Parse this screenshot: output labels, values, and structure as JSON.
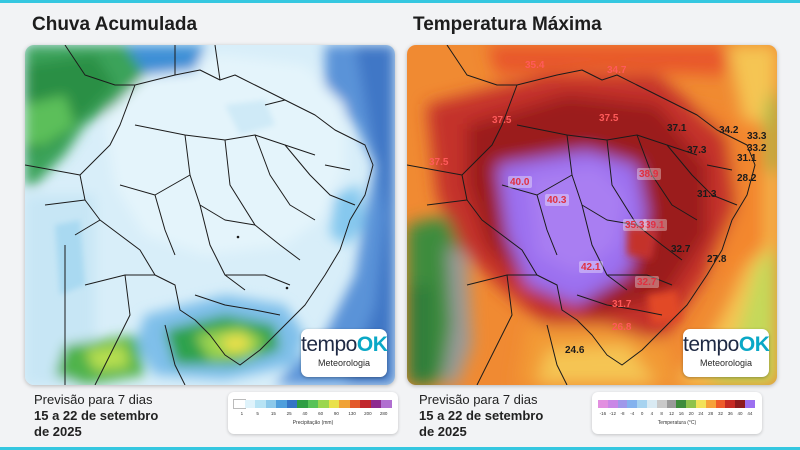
{
  "colors": {
    "frame_accent": "#35c7e0",
    "brand_accent": "#0aa8c6"
  },
  "brand": {
    "name_part1": "tempo",
    "name_part2": "OK",
    "subtitle": "Meteorologia"
  },
  "rain_panel": {
    "title": "Chuva Acumulada",
    "forecast_period": "Previsão para 7 dias",
    "date_range": "15 a 22 de setembro",
    "year": "de 2025",
    "legend": {
      "caption": "Precipitação (mm)",
      "ticks": [
        "1",
        "5",
        "15",
        "25",
        "40",
        "60",
        "90",
        "130",
        "200",
        "280"
      ],
      "colors": [
        "#ffffff",
        "#dff3fb",
        "#b7e3f4",
        "#8cc9ea",
        "#4f9fdc",
        "#3575c6",
        "#2f9e44",
        "#58c257",
        "#9bd64f",
        "#e9e14a",
        "#f0a236",
        "#e35a2a",
        "#c1272d",
        "#8e2a8f",
        "#b06fd0"
      ]
    }
  },
  "temp_panel": {
    "title": "Temperatura Máxima",
    "forecast_period": "Previsão para 7 dias",
    "date_range": "15 a 22 de setembro",
    "year": "de 2025",
    "legend": {
      "caption": "Temperatura (°C)",
      "ticks": [
        "-16",
        "-12",
        "-8",
        "-4",
        "0",
        "4",
        "8",
        "12",
        "16",
        "20",
        "24",
        "28",
        "32",
        "36",
        "40",
        "44"
      ],
      "colors": [
        "#e28fe0",
        "#c987e6",
        "#9f98ea",
        "#84b2ee",
        "#a7d3f0",
        "#d9eaf3",
        "#c9c9c9",
        "#9a9a9a",
        "#3e8c3c",
        "#8fc24c",
        "#f2e25a",
        "#f6a23b",
        "#ef5b2a",
        "#c62a24",
        "#8c1a1e",
        "#9c6ff0"
      ]
    },
    "temperature_labels": [
      "35.4",
      "34.7",
      "37.5",
      "37.5",
      "37.1",
      "34.2",
      "33.3",
      "37.3",
      "33.2",
      "31.1",
      "37.5",
      "28.2",
      "40.0",
      "38.9",
      "40.3",
      "31.3",
      "39.1",
      "35.3",
      "32.7",
      "27.8",
      "42.1",
      "32.7",
      "31.7",
      "26.8",
      "24.6"
    ]
  }
}
